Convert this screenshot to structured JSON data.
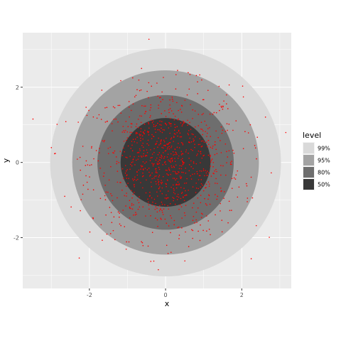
{
  "chart_data": {
    "type": "scatter",
    "title": "",
    "xlabel": "x",
    "ylabel": "y",
    "xlim": [
      -3.75,
      3.3
    ],
    "ylim": [
      -3.35,
      3.45
    ],
    "x_ticks": [
      -2,
      0,
      2
    ],
    "y_ticks": [
      -2,
      0,
      2
    ],
    "x_tick_labels": [
      "-2",
      "0",
      "2"
    ],
    "y_tick_labels": [
      "-2",
      "0",
      "2"
    ],
    "grid": true,
    "panel_background": "#ebebeb",
    "point_color": "#ff0000",
    "point_count": 1000,
    "center": [
      0,
      0
    ],
    "legend": {
      "title": "level",
      "placement": "right",
      "entries": [
        {
          "label": "99%",
          "radius": 3.03,
          "fill": "#d9d9d9"
        },
        {
          "label": "95%",
          "radius": 2.45,
          "fill": "#a3a3a3"
        },
        {
          "label": "80%",
          "radius": 1.79,
          "fill": "#6e6e6e"
        },
        {
          "label": "50%",
          "radius": 1.18,
          "fill": "#383838"
        }
      ]
    }
  }
}
